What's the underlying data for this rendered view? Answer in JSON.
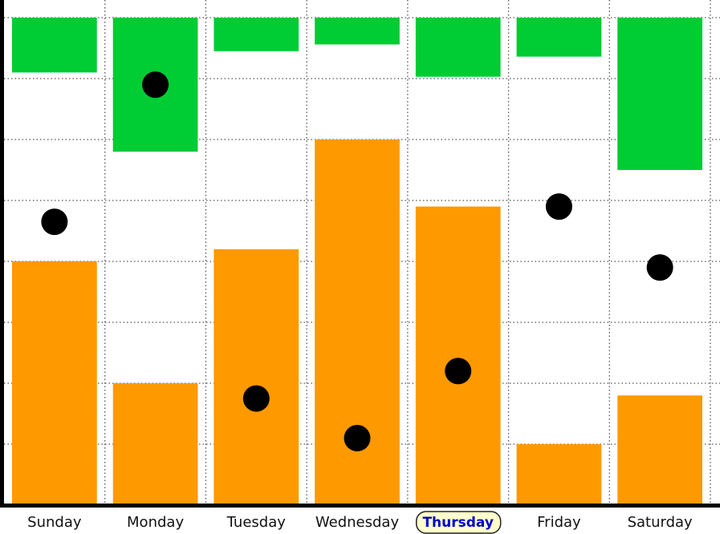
{
  "chart_data": {
    "type": "bar",
    "title": "",
    "xlabel": "",
    "ylabel": "",
    "categories": [
      "Sunday",
      "Monday",
      "Tuesday",
      "Wednesday",
      "Thursday",
      "Friday",
      "Saturday"
    ],
    "highlighted_category": "Thursday",
    "ylim": [
      0,
      80
    ],
    "grid": true,
    "gridline_step": 10,
    "series": [
      {
        "name": "orange bars (from baseline)",
        "type": "bar",
        "anchor": "bottom",
        "color": "#ff9900",
        "values": [
          40,
          20,
          42,
          60,
          49,
          10,
          18
        ]
      },
      {
        "name": "green bars (hanging from top)",
        "type": "bar",
        "anchor": "top",
        "color": "#00cc33",
        "values": [
          9,
          22,
          5.5,
          4.4,
          9.7,
          6.4,
          25
        ]
      },
      {
        "name": "dots",
        "type": "scatter",
        "color": "#000000",
        "values": [
          46.5,
          69,
          17.5,
          11,
          22,
          49,
          39
        ]
      }
    ]
  },
  "colors": {
    "axis": "#000000",
    "grid": "#555555",
    "highlight_bg": "#ffffcc",
    "highlight_text": "#0000cc"
  }
}
